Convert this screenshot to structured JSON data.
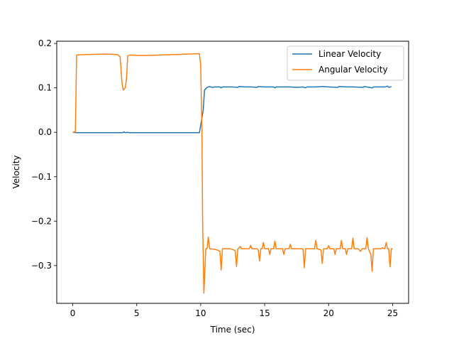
{
  "chart_data": {
    "type": "line",
    "xlabel": "Time (sec)",
    "ylabel": "Velocity",
    "xlim": [
      -1.25,
      26.25
    ],
    "ylim": [
      -0.385,
      0.205
    ],
    "x_ticks": [
      0,
      5,
      10,
      15,
      20,
      25
    ],
    "x_tick_labels": [
      "0",
      "5",
      "10",
      "15",
      "20",
      "25"
    ],
    "y_ticks": [
      0.2,
      0.1,
      0.0,
      -0.1,
      -0.2,
      -0.3
    ],
    "y_tick_labels": [
      "0.2",
      "0.1",
      "0.0",
      "−0.1",
      "−0.2",
      "−0.3"
    ],
    "grid": false,
    "legend_position": "upper right",
    "series": [
      {
        "name": "Linear Velocity",
        "color": "#1f77b4",
        "points": [
          [
            0.0,
            0.0
          ],
          [
            0.3,
            -0.001
          ],
          [
            1.0,
            -0.001
          ],
          [
            2.0,
            -0.001
          ],
          [
            3.0,
            -0.001
          ],
          [
            3.9,
            -0.001
          ],
          [
            4.0,
            0.001
          ],
          [
            4.1,
            -0.001
          ],
          [
            4.3,
            0.0
          ],
          [
            4.4,
            -0.001
          ],
          [
            5.0,
            -0.001
          ],
          [
            6.0,
            -0.001
          ],
          [
            7.0,
            -0.001
          ],
          [
            8.0,
            -0.001
          ],
          [
            9.0,
            -0.001
          ],
          [
            9.9,
            -0.001
          ],
          [
            10.2,
            0.05
          ],
          [
            10.3,
            0.095
          ],
          [
            10.5,
            0.101
          ],
          [
            10.7,
            0.103
          ],
          [
            10.9,
            0.101
          ],
          [
            11.1,
            0.102
          ],
          [
            11.5,
            0.102
          ],
          [
            11.6,
            0.1
          ],
          [
            11.7,
            0.102
          ],
          [
            12.5,
            0.102
          ],
          [
            12.9,
            0.101
          ],
          [
            13.0,
            0.103
          ],
          [
            13.5,
            0.102
          ],
          [
            14.0,
            0.102
          ],
          [
            14.4,
            0.101
          ],
          [
            14.5,
            0.103
          ],
          [
            15.0,
            0.102
          ],
          [
            15.7,
            0.102
          ],
          [
            15.8,
            0.1
          ],
          [
            15.9,
            0.102
          ],
          [
            16.5,
            0.102
          ],
          [
            17.0,
            0.102
          ],
          [
            17.5,
            0.101
          ],
          [
            18.0,
            0.102
          ],
          [
            18.2,
            0.1
          ],
          [
            18.3,
            0.102
          ],
          [
            19.0,
            0.102
          ],
          [
            19.5,
            0.103
          ],
          [
            20.0,
            0.102
          ],
          [
            20.7,
            0.101
          ],
          [
            20.8,
            0.103
          ],
          [
            21.5,
            0.102
          ],
          [
            22.0,
            0.102
          ],
          [
            22.7,
            0.101
          ],
          [
            22.8,
            0.103
          ],
          [
            23.4,
            0.1
          ],
          [
            23.5,
            0.102
          ],
          [
            24.0,
            0.102
          ],
          [
            24.4,
            0.102
          ],
          [
            24.6,
            0.104
          ],
          [
            24.7,
            0.101
          ],
          [
            24.8,
            0.102
          ],
          [
            24.9,
            0.103
          ]
        ]
      },
      {
        "name": "Angular Velocity",
        "color": "#ff7f0e",
        "points": [
          [
            0.0,
            0.0
          ],
          [
            0.2,
            0.001
          ],
          [
            0.3,
            0.174
          ],
          [
            1.0,
            0.175
          ],
          [
            2.5,
            0.176
          ],
          [
            3.5,
            0.175
          ],
          [
            3.7,
            0.17
          ],
          [
            3.85,
            0.11
          ],
          [
            3.95,
            0.095
          ],
          [
            4.1,
            0.1
          ],
          [
            4.2,
            0.12
          ],
          [
            4.3,
            0.172
          ],
          [
            4.5,
            0.174
          ],
          [
            5.0,
            0.173
          ],
          [
            6.0,
            0.173
          ],
          [
            7.0,
            0.174
          ],
          [
            8.0,
            0.175
          ],
          [
            9.0,
            0.176
          ],
          [
            9.9,
            0.177
          ],
          [
            10.0,
            0.15
          ],
          [
            10.1,
            0.0
          ],
          [
            10.15,
            -0.2
          ],
          [
            10.25,
            -0.362
          ],
          [
            10.4,
            -0.262
          ],
          [
            10.5,
            -0.262
          ],
          [
            10.6,
            -0.236
          ],
          [
            10.7,
            -0.262
          ],
          [
            11.0,
            -0.263
          ],
          [
            11.3,
            -0.265
          ],
          [
            11.5,
            -0.268
          ],
          [
            11.6,
            -0.31
          ],
          [
            11.7,
            -0.262
          ],
          [
            12.0,
            -0.262
          ],
          [
            12.3,
            -0.262
          ],
          [
            12.6,
            -0.265
          ],
          [
            12.7,
            -0.267
          ],
          [
            12.8,
            -0.302
          ],
          [
            12.9,
            -0.263
          ],
          [
            13.1,
            -0.257
          ],
          [
            13.2,
            -0.262
          ],
          [
            13.5,
            -0.262
          ],
          [
            13.8,
            -0.262
          ],
          [
            13.9,
            -0.255
          ],
          [
            14.0,
            -0.262
          ],
          [
            14.4,
            -0.262
          ],
          [
            14.5,
            -0.265
          ],
          [
            14.6,
            -0.29
          ],
          [
            14.7,
            -0.262
          ],
          [
            14.8,
            -0.262
          ],
          [
            14.9,
            -0.248
          ],
          [
            15.0,
            -0.262
          ],
          [
            15.3,
            -0.262
          ],
          [
            15.4,
            -0.275
          ],
          [
            15.5,
            -0.262
          ],
          [
            15.7,
            -0.262
          ],
          [
            15.8,
            -0.245
          ],
          [
            15.9,
            -0.262
          ],
          [
            16.2,
            -0.262
          ],
          [
            16.4,
            -0.262
          ],
          [
            16.5,
            -0.275
          ],
          [
            16.6,
            -0.262
          ],
          [
            16.9,
            -0.262
          ],
          [
            17.0,
            -0.252
          ],
          [
            17.1,
            -0.262
          ],
          [
            17.5,
            -0.262
          ],
          [
            17.9,
            -0.262
          ],
          [
            18.0,
            -0.263
          ],
          [
            18.1,
            -0.305
          ],
          [
            18.2,
            -0.262
          ],
          [
            18.5,
            -0.262
          ],
          [
            18.9,
            -0.262
          ],
          [
            19.0,
            -0.243
          ],
          [
            19.1,
            -0.262
          ],
          [
            19.4,
            -0.265
          ],
          [
            19.5,
            -0.295
          ],
          [
            19.6,
            -0.262
          ],
          [
            19.9,
            -0.262
          ],
          [
            20.0,
            -0.255
          ],
          [
            20.1,
            -0.262
          ],
          [
            20.4,
            -0.262
          ],
          [
            20.5,
            -0.275
          ],
          [
            20.6,
            -0.262
          ],
          [
            20.9,
            -0.262
          ],
          [
            21.0,
            -0.243
          ],
          [
            21.1,
            -0.262
          ],
          [
            21.3,
            -0.262
          ],
          [
            21.4,
            -0.275
          ],
          [
            21.5,
            -0.262
          ],
          [
            21.8,
            -0.262
          ],
          [
            21.9,
            -0.238
          ],
          [
            22.0,
            -0.262
          ],
          [
            22.3,
            -0.262
          ],
          [
            22.5,
            -0.268
          ],
          [
            22.6,
            -0.262
          ],
          [
            22.9,
            -0.262
          ],
          [
            23.0,
            -0.237
          ],
          [
            23.1,
            -0.262
          ],
          [
            23.3,
            -0.275
          ],
          [
            23.4,
            -0.313
          ],
          [
            23.5,
            -0.262
          ],
          [
            23.8,
            -0.262
          ],
          [
            24.1,
            -0.262
          ],
          [
            24.2,
            -0.26
          ],
          [
            24.4,
            -0.262
          ],
          [
            24.5,
            -0.248
          ],
          [
            24.6,
            -0.262
          ],
          [
            24.7,
            -0.262
          ],
          [
            24.8,
            -0.303
          ],
          [
            24.9,
            -0.262
          ],
          [
            25.0,
            -0.262
          ]
        ]
      }
    ]
  }
}
